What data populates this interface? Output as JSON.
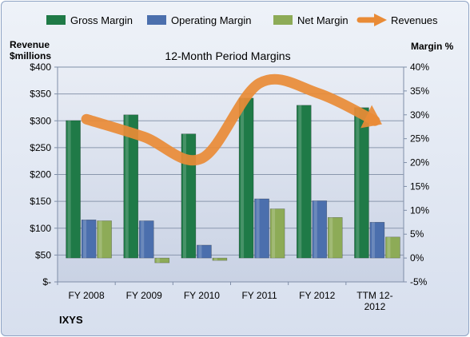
{
  "chart_data": {
    "type": "bar",
    "title": "12-Month Period Margins",
    "company": "IXYS",
    "ylabel_left": [
      "Revenue",
      "$millions"
    ],
    "ylabel_right": "Margin %",
    "categories": [
      "FY 2008",
      "FY 2009",
      "FY 2010",
      "FY 2011",
      "FY 2012",
      "TTM 12-2012"
    ],
    "category_labels": [
      [
        "FY 2008"
      ],
      [
        "FY 2009"
      ],
      [
        "FY 2010"
      ],
      [
        "FY 2011"
      ],
      [
        "FY 2012"
      ],
      [
        "TTM 12-",
        "2012"
      ]
    ],
    "left_axis": {
      "min": 0,
      "max": 400,
      "step": 50,
      "ticks": [
        "$-",
        "$50",
        "$100",
        "$150",
        "$200",
        "$250",
        "$300",
        "$350",
        "$400"
      ]
    },
    "right_axis": {
      "min": -5,
      "max": 40,
      "step": 5,
      "ticks": [
        "-5%",
        "0%",
        "5%",
        "10%",
        "15%",
        "20%",
        "25%",
        "30%",
        "35%",
        "40%"
      ]
    },
    "series": [
      {
        "name": "Gross Margin",
        "kind": "bar",
        "axis": "right",
        "color": "#1f7a47",
        "values": [
          28.8,
          30.0,
          26.0,
          33.5,
          32.0,
          31.5
        ]
      },
      {
        "name": "Operating Margin",
        "kind": "bar",
        "axis": "right",
        "color": "#4b6fad",
        "values": [
          8.0,
          7.8,
          2.7,
          12.4,
          12.0,
          7.5
        ]
      },
      {
        "name": "Net Margin",
        "kind": "bar",
        "axis": "right",
        "color": "#8dab57",
        "values": [
          7.8,
          -1.0,
          -0.5,
          10.3,
          8.5,
          4.4
        ]
      },
      {
        "name": "Revenues",
        "kind": "line",
        "axis": "left",
        "color": "#e98b36",
        "values": [
          303,
          270,
          230,
          370,
          352,
          300
        ]
      }
    ],
    "grid": true,
    "legend": "top"
  }
}
